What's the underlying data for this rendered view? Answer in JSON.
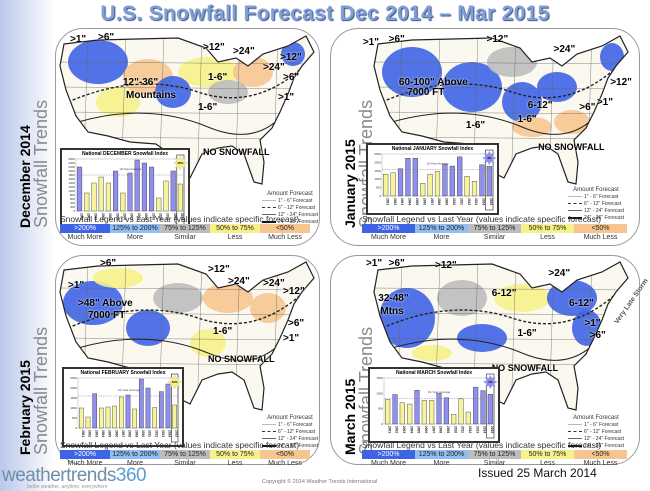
{
  "title": "U.S. Snowfall Forecast Dec 2014 – Mar 2015",
  "colors": {
    "much_more": "#3e64e6",
    "more": "#90bdf2",
    "similar": "#bdbdbd",
    "less": "#f6f18a",
    "much_less": "#f7c590",
    "bar_above": "#8f8ff0",
    "bar_below": "#f6f39a"
  },
  "legend": {
    "title": "Snowfall Legend vs Last Year (values indicate specific forecast)",
    "ranges": [
      ">200%",
      "125% to 200%",
      "75% to 125%",
      "50% to 75%",
      "<50%"
    ],
    "labels": [
      "Much More",
      "More",
      "Similar",
      "Less",
      "Much Less"
    ]
  },
  "amount_forecast": {
    "title": "Amount Forecast",
    "items": [
      "1\" - 6\"  Forecast",
      "6\" - 12\"  Forecast",
      "12\" - 24\"  Forecast",
      "24\" - 36\" Forecast"
    ]
  },
  "side_suffix": "Snowfall Trends",
  "panels": [
    {
      "month": "December 2014",
      "chart_title": "National DECEMBER Snowfall Index",
      "avg_label": "10-Year Average",
      "badge": "38%",
      "map_labels": [
        ">1\"",
        ">6\"",
        ">12\"",
        ">24\"",
        "12\"-36\"",
        "Mountains",
        "1-6\"",
        "1-6\"",
        ">24\"",
        ">12\"",
        ">6\"",
        ">1\"",
        "NO SNOWFALL"
      ]
    },
    {
      "month": "January 2015",
      "chart_title": "National JANUARY Snowfall Index",
      "avg_label": "10-Year Average",
      "badge": "4%",
      "map_labels": [
        ">1\"",
        ">6\"",
        ">12\"",
        ">24\"",
        "60-100\" Above",
        "7000 FT",
        "6-12\"",
        "1-6\"",
        "1-6\"",
        ">12\"",
        ">6\"",
        ">1\"",
        "NO SNOWFALL"
      ]
    },
    {
      "month": "February 2015",
      "chart_title": "National FEBRUARY Snowfall Index",
      "avg_label": "10-Year Average",
      "badge": "49%",
      "map_labels": [
        ">1\"",
        ">6\"",
        ">12\"",
        ">24\"",
        ">48\" Above",
        "7000 FT",
        "1-6\"",
        ">24\"",
        ">12\"",
        ">6\"",
        ">1\"",
        "NO SNOWFALL"
      ]
    },
    {
      "month": "March 2015",
      "chart_title": "National MARCH Snowfall Index",
      "avg_label": "10-Year Average",
      "badge": "4%",
      "map_labels": [
        ">1\"",
        ">6\"",
        ">12\"",
        "6-12\"",
        ">24\"",
        "32-48\"",
        "Mtns",
        "6-12\"",
        "1-6\"",
        ">6\"",
        ">1\"",
        "NO SNOWFALL",
        "Very Late Storm"
      ]
    }
  ],
  "chart_data": [
    {
      "type": "bar",
      "title": "National DECEMBER Snowfall Index",
      "categories": [
        "2000",
        "2001",
        "2002",
        "2003",
        "2004",
        "2005",
        "2006",
        "2007",
        "2008",
        "2009",
        "2010",
        "2011",
        "2012",
        "2013",
        "2014"
      ],
      "values": [
        2200,
        900,
        1400,
        1700,
        1400,
        2000,
        900,
        1900,
        2550,
        2400,
        2200,
        650,
        1500,
        2000,
        1350
      ],
      "above_avg": [
        true,
        false,
        false,
        false,
        false,
        true,
        false,
        true,
        true,
        true,
        true,
        false,
        false,
        true,
        false
      ],
      "average": 1800,
      "ylim": [
        0,
        2600
      ],
      "yticks": [
        0,
        200,
        400,
        600,
        800,
        1000,
        1200,
        1400,
        1600,
        1800,
        2000,
        2200,
        2400,
        2600
      ],
      "last_label": "FORECAST"
    },
    {
      "type": "bar",
      "title": "National JANUARY Snowfall Index",
      "categories": [
        "2001",
        "2002",
        "2003",
        "2004",
        "2005",
        "2006",
        "2007",
        "2008",
        "2009",
        "2010",
        "2011",
        "2012",
        "2013",
        "2014",
        "2015"
      ],
      "values": [
        1300,
        1380,
        1620,
        2250,
        2250,
        750,
        1300,
        1460,
        1900,
        1780,
        2330,
        1170,
        870,
        1860,
        1770
      ],
      "above_avg": [
        false,
        false,
        true,
        true,
        true,
        false,
        false,
        false,
        true,
        true,
        true,
        false,
        false,
        true,
        true
      ],
      "average": 1580,
      "ylim": [
        0,
        2500
      ],
      "yticks": [
        0,
        500,
        1000,
        1500,
        2000,
        2500
      ],
      "last_label": "FORECAST"
    },
    {
      "type": "bar",
      "title": "National FEBRUARY Snowfall Index",
      "categories": [
        "2001",
        "2002",
        "2003",
        "2004",
        "2005",
        "2006",
        "2007",
        "2008",
        "2009",
        "2010",
        "2011",
        "2012",
        "2013",
        "2014",
        "2015"
      ],
      "values": [
        1000,
        550,
        1720,
        1000,
        1050,
        1100,
        1550,
        1650,
        950,
        2450,
        2000,
        1020,
        1820,
        2200,
        1150
      ],
      "above_avg": [
        false,
        false,
        true,
        false,
        false,
        false,
        false,
        true,
        false,
        true,
        true,
        false,
        true,
        true,
        false
      ],
      "average": 1600,
      "ylim": [
        0,
        2500
      ],
      "yticks": [
        0,
        500,
        1000,
        1500,
        2000,
        2500
      ],
      "last_label": "FORECAST"
    },
    {
      "type": "bar",
      "title": "National MARCH Snowfall Index",
      "categories": [
        "2001",
        "2002",
        "2003",
        "2004",
        "2005",
        "2006",
        "2007",
        "2008",
        "2009",
        "2010",
        "2011",
        "2012",
        "2013",
        "2014",
        "2015"
      ],
      "values": [
        800,
        960,
        690,
        650,
        1100,
        770,
        770,
        1000,
        860,
        320,
        820,
        390,
        1200,
        1090,
        970
      ],
      "above_avg": [
        false,
        true,
        false,
        false,
        true,
        false,
        false,
        true,
        true,
        false,
        false,
        false,
        true,
        true,
        true
      ],
      "average": 840,
      "ylim": [
        0,
        1500
      ],
      "yticks": [
        0,
        500,
        1000,
        1500
      ],
      "last_label": "FORECAST"
    }
  ],
  "footer": {
    "logo": "weathertrends",
    "logo_num": "360",
    "tagline": "better weather, anytime, everywhere",
    "issued": "Issued 25 March 2014",
    "copyright": "Copyright © 2014 Weather Trends International"
  }
}
